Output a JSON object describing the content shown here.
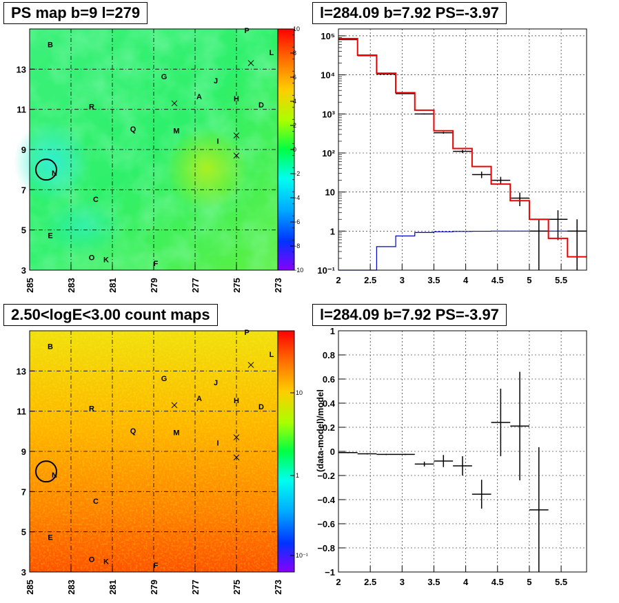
{
  "chart_data": [
    {
      "type": "heatmap",
      "title": "PS map b=9 l=279",
      "x_ticks": [
        "285",
        "283",
        "281",
        "279",
        "277",
        "275",
        "273"
      ],
      "y_ticks": [
        "3",
        "5",
        "7",
        "9",
        "11",
        "13"
      ],
      "xlim": [
        285,
        273
      ],
      "ylim": [
        3,
        15
      ],
      "colorbar": {
        "min": -10,
        "max": 10,
        "ticks": [
          "10",
          "8",
          "6",
          "4",
          "2",
          "0",
          "−2",
          "−4",
          "−6",
          "−8",
          "−10"
        ]
      },
      "sources": [
        {
          "name": "P",
          "l": 274.5,
          "b": 14.8
        },
        {
          "name": "B",
          "l": 284.0,
          "b": 14.1
        },
        {
          "name": "L",
          "l": 273.3,
          "b": 13.7
        },
        {
          "name": "G",
          "l": 278.5,
          "b": 12.5
        },
        {
          "name": "J",
          "l": 276.0,
          "b": 12.3
        },
        {
          "name": "A",
          "l": 276.8,
          "b": 11.5
        },
        {
          "name": "H",
          "l": 275.0,
          "b": 11.4
        },
        {
          "name": "D",
          "l": 273.8,
          "b": 11.1
        },
        {
          "name": "R",
          "l": 282.0,
          "b": 11.0
        },
        {
          "name": "Q",
          "l": 280.0,
          "b": 9.9
        },
        {
          "name": "M",
          "l": 277.9,
          "b": 9.8
        },
        {
          "name": "I",
          "l": 275.9,
          "b": 9.3
        },
        {
          "name": "N",
          "l": 283.8,
          "b": 7.7
        },
        {
          "name": "C",
          "l": 281.8,
          "b": 6.4
        },
        {
          "name": "E",
          "l": 284.0,
          "b": 4.6
        },
        {
          "name": "O",
          "l": 282.0,
          "b": 3.5
        },
        {
          "name": "K",
          "l": 281.3,
          "b": 3.4
        },
        {
          "name": "F",
          "l": 278.9,
          "b": 3.2
        }
      ],
      "crosses": [
        {
          "l": 274.3,
          "b": 13.3
        },
        {
          "l": 278.0,
          "b": 11.3
        },
        {
          "l": 275.0,
          "b": 9.7
        },
        {
          "l": 275.0,
          "b": 8.7
        }
      ],
      "circle": {
        "l": 284.2,
        "b": 8.0
      }
    },
    {
      "type": "line",
      "title": "l=284.09 b=7.92 PS=-3.97",
      "log_y": true,
      "xlim": [
        2,
        5.9
      ],
      "ylim": [
        0.1,
        150000
      ],
      "x_ticks": [
        "2",
        "2.5",
        "3",
        "3.5",
        "4",
        "4.5",
        "5",
        "5.5"
      ],
      "y_ticks": [
        "10⁻¹",
        "1",
        "10",
        "10²",
        "10³",
        "10⁴",
        "10⁵"
      ],
      "bin_edges": [
        2.0,
        2.3,
        2.6,
        2.9,
        3.2,
        3.5,
        3.8,
        4.1,
        4.4,
        4.7,
        5.0,
        5.3,
        5.6,
        5.9
      ],
      "model_red": [
        85000,
        32000,
        11000,
        3500,
        1250,
        370,
        130,
        45,
        16,
        6,
        2,
        0.65,
        0.22
      ],
      "model_blue": [
        0.1,
        0.1,
        0.4,
        0.75,
        0.92,
        0.96,
        0.98,
        0.99,
        1.0,
        1.0,
        1.0,
        1.0,
        1.0
      ],
      "data": [
        {
          "x": 2.15,
          "y": 80000
        },
        {
          "x": 2.45,
          "y": 31000
        },
        {
          "x": 2.75,
          "y": 10500
        },
        {
          "x": 3.05,
          "y": 3300
        },
        {
          "x": 3.35,
          "y": 1000
        },
        {
          "x": 3.65,
          "y": 330
        },
        {
          "x": 3.95,
          "y": 110
        },
        {
          "x": 4.25,
          "y": 28
        },
        {
          "x": 4.55,
          "y": 20
        },
        {
          "x": 4.85,
          "y": 7
        },
        {
          "x": 5.15,
          "y": 1
        },
        {
          "x": 5.45,
          "y": 2
        },
        {
          "x": 5.75,
          "y": 1
        }
      ]
    },
    {
      "type": "heatmap",
      "title": "2.50<logE<3.00 count maps",
      "x_ticks": [
        "285",
        "283",
        "281",
        "279",
        "277",
        "275",
        "273"
      ],
      "y_ticks": [
        "3",
        "5",
        "7",
        "9",
        "11",
        "13"
      ],
      "xlim": [
        285,
        273
      ],
      "ylim": [
        3,
        15
      ],
      "colorbar": {
        "log": true,
        "ticks": [
          "10",
          "1",
          "10⁻¹"
        ]
      }
    },
    {
      "type": "scatter",
      "title": "l=284.09 b=7.92 PS=-3.97",
      "ylabel": "(data-model)/model",
      "xlim": [
        2,
        5.9
      ],
      "ylim": [
        -1,
        1
      ],
      "x_ticks": [
        "2",
        "2.5",
        "3",
        "3.5",
        "4",
        "4.5",
        "5",
        "5.5"
      ],
      "y_ticks": [
        "1",
        "0.8",
        "0.6",
        "0.4",
        "0.2",
        "0",
        "−0.2",
        "−0.4",
        "−0.6",
        "−0.8",
        "−1"
      ],
      "points": [
        {
          "x": 2.15,
          "y": -0.01,
          "yerr": 0.005
        },
        {
          "x": 2.45,
          "y": -0.02,
          "yerr": 0.005
        },
        {
          "x": 2.75,
          "y": -0.025,
          "yerr": 0.005
        },
        {
          "x": 3.05,
          "y": -0.025,
          "yerr": 0.005
        },
        {
          "x": 3.35,
          "y": -0.105,
          "yerr": 0.02
        },
        {
          "x": 3.65,
          "y": -0.08,
          "yerr": 0.05
        },
        {
          "x": 3.95,
          "y": -0.12,
          "yerr": 0.08
        },
        {
          "x": 4.25,
          "y": -0.355,
          "yerr": 0.12
        },
        {
          "x": 4.55,
          "y": 0.24,
          "yerr": 0.28
        },
        {
          "x": 4.85,
          "y": 0.21,
          "yerr": 0.45
        },
        {
          "x": 5.15,
          "y": -0.485,
          "yerr": 0.52
        }
      ]
    }
  ]
}
